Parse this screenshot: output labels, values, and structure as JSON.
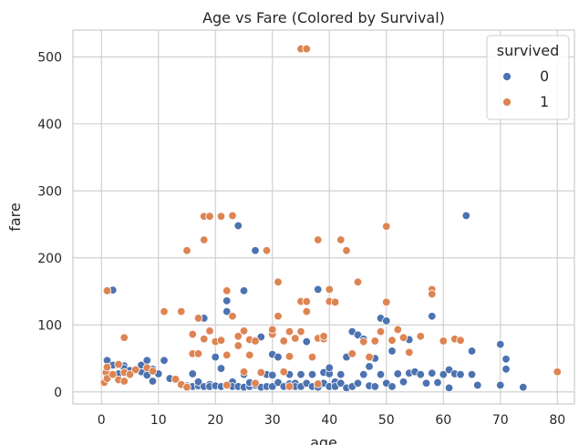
{
  "chart_data": {
    "type": "scatter",
    "title": "Age vs Fare (Colored by Survival)",
    "xlabel": "age",
    "ylabel": "fare",
    "xlim": [
      -5,
      83
    ],
    "ylim": [
      -18,
      540
    ],
    "xticks": [
      0,
      10,
      20,
      30,
      40,
      50,
      60,
      70,
      80
    ],
    "yticks": [
      0,
      100,
      200,
      300,
      400,
      500
    ],
    "grid": true,
    "legend": {
      "title": "survived",
      "placement": "top-right"
    },
    "series": [
      {
        "name": "0",
        "color": "#4c72b0",
        "points": [
          [
            2,
            152
          ],
          [
            1,
            47
          ],
          [
            2,
            40
          ],
          [
            3,
            27
          ],
          [
            4,
            39
          ],
          [
            4,
            35
          ],
          [
            5,
            32
          ],
          [
            7,
            30
          ],
          [
            7,
            40
          ],
          [
            8,
            25
          ],
          [
            8,
            47
          ],
          [
            9,
            34
          ],
          [
            9,
            16
          ],
          [
            10,
            27
          ],
          [
            11,
            47
          ],
          [
            12,
            20
          ],
          [
            14,
            10
          ],
          [
            15,
            9
          ],
          [
            16,
            8
          ],
          [
            16,
            27
          ],
          [
            17,
            9
          ],
          [
            17,
            15
          ],
          [
            18,
            110
          ],
          [
            18,
            8
          ],
          [
            19,
            11
          ],
          [
            19,
            263
          ],
          [
            19,
            8
          ],
          [
            20,
            9
          ],
          [
            20,
            52
          ],
          [
            21,
            8
          ],
          [
            21,
            35
          ],
          [
            22,
            9
          ],
          [
            22,
            120
          ],
          [
            22,
            136
          ],
          [
            23,
            15
          ],
          [
            23,
            8
          ],
          [
            24,
            248
          ],
          [
            24,
            8
          ],
          [
            25,
            151
          ],
          [
            25,
            26
          ],
          [
            25,
            7
          ],
          [
            26,
            8
          ],
          [
            26,
            14
          ],
          [
            27,
            211
          ],
          [
            27,
            10
          ],
          [
            28,
            82
          ],
          [
            28,
            7
          ],
          [
            29,
            26
          ],
          [
            29,
            8
          ],
          [
            30,
            8
          ],
          [
            30,
            56
          ],
          [
            30,
            25
          ],
          [
            31,
            14
          ],
          [
            31,
            52
          ],
          [
            32,
            8
          ],
          [
            32,
            77
          ],
          [
            33,
            12
          ],
          [
            33,
            26
          ],
          [
            34,
            13
          ],
          [
            34,
            8
          ],
          [
            35,
            8
          ],
          [
            35,
            26
          ],
          [
            36,
            13
          ],
          [
            36,
            75
          ],
          [
            37,
            8
          ],
          [
            37,
            26
          ],
          [
            38,
            153
          ],
          [
            38,
            7
          ],
          [
            39,
            29
          ],
          [
            39,
            13
          ],
          [
            40,
            8
          ],
          [
            40,
            27
          ],
          [
            40,
            36
          ],
          [
            41,
            15
          ],
          [
            41,
            8
          ],
          [
            42,
            26
          ],
          [
            42,
            13
          ],
          [
            43,
            52
          ],
          [
            43,
            6
          ],
          [
            44,
            90
          ],
          [
            44,
            8
          ],
          [
            45,
            85
          ],
          [
            45,
            13
          ],
          [
            46,
            79
          ],
          [
            46,
            26
          ],
          [
            47,
            38
          ],
          [
            47,
            9
          ],
          [
            48,
            8
          ],
          [
            48,
            50
          ],
          [
            49,
            26
          ],
          [
            49,
            110
          ],
          [
            50,
            106
          ],
          [
            50,
            13
          ],
          [
            51,
            61
          ],
          [
            51,
            8
          ],
          [
            52,
            27
          ],
          [
            53,
            15
          ],
          [
            54,
            28
          ],
          [
            54,
            78
          ],
          [
            55,
            30
          ],
          [
            56,
            26
          ],
          [
            57,
            13
          ],
          [
            58,
            113
          ],
          [
            58,
            28
          ],
          [
            59,
            14
          ],
          [
            60,
            26
          ],
          [
            61,
            33
          ],
          [
            61,
            6
          ],
          [
            62,
            27
          ],
          [
            63,
            26
          ],
          [
            64,
            263
          ],
          [
            65,
            61
          ],
          [
            65,
            26
          ],
          [
            66,
            10
          ],
          [
            70,
            71
          ],
          [
            70,
            10
          ],
          [
            71,
            49
          ],
          [
            71,
            34
          ],
          [
            74,
            7
          ]
        ]
      },
      {
        "name": "1",
        "color": "#dd8452",
        "points": [
          [
            1,
            151
          ],
          [
            0.5,
            14
          ],
          [
            0.8,
            29
          ],
          [
            1,
            20
          ],
          [
            1,
            37
          ],
          [
            2,
            26
          ],
          [
            3,
            18
          ],
          [
            3,
            41
          ],
          [
            4,
            81
          ],
          [
            4,
            16
          ],
          [
            4,
            29
          ],
          [
            5,
            26
          ],
          [
            6,
            33
          ],
          [
            8,
            36
          ],
          [
            9,
            31
          ],
          [
            11,
            120
          ],
          [
            13,
            19
          ],
          [
            14,
            120
          ],
          [
            14,
            11
          ],
          [
            15,
            211
          ],
          [
            15,
            7
          ],
          [
            16,
            86
          ],
          [
            16,
            57
          ],
          [
            17,
            110
          ],
          [
            17,
            57
          ],
          [
            18,
            262
          ],
          [
            18,
            227
          ],
          [
            18,
            79
          ],
          [
            19,
            91
          ],
          [
            19,
            262
          ],
          [
            20,
            75
          ],
          [
            21,
            262
          ],
          [
            21,
            77
          ],
          [
            22,
            151
          ],
          [
            22,
            55
          ],
          [
            23,
            262
          ],
          [
            23,
            113
          ],
          [
            23,
            263
          ],
          [
            24,
            83
          ],
          [
            24,
            69
          ],
          [
            25,
            91
          ],
          [
            25,
            30
          ],
          [
            26,
            78
          ],
          [
            26,
            55
          ],
          [
            27,
            76
          ],
          [
            28,
            29
          ],
          [
            29,
            211
          ],
          [
            30,
            86
          ],
          [
            30,
            93
          ],
          [
            31,
            164
          ],
          [
            31,
            113
          ],
          [
            32,
            76
          ],
          [
            32,
            30
          ],
          [
            33,
            90
          ],
          [
            33,
            53
          ],
          [
            34,
            80
          ],
          [
            35,
            512
          ],
          [
            35,
            135
          ],
          [
            35,
            90
          ],
          [
            36,
            512
          ],
          [
            36,
            135
          ],
          [
            36,
            120
          ],
          [
            37,
            52
          ],
          [
            38,
            227
          ],
          [
            38,
            80
          ],
          [
            39,
            79
          ],
          [
            39,
            83
          ],
          [
            40,
            153
          ],
          [
            40,
            135
          ],
          [
            41,
            134
          ],
          [
            42,
            227
          ],
          [
            43,
            211
          ],
          [
            44,
            57
          ],
          [
            45,
            164
          ],
          [
            46,
            75
          ],
          [
            47,
            52
          ],
          [
            48,
            76
          ],
          [
            49,
            90
          ],
          [
            50,
            247
          ],
          [
            50,
            134
          ],
          [
            51,
            77
          ],
          [
            52,
            93
          ],
          [
            53,
            81
          ],
          [
            54,
            59
          ],
          [
            56,
            83
          ],
          [
            58,
            153
          ],
          [
            58,
            146
          ],
          [
            60,
            76
          ],
          [
            62,
            79
          ],
          [
            63,
            77
          ],
          [
            80,
            30
          ],
          [
            22,
            10
          ],
          [
            27,
            13
          ],
          [
            33,
            8
          ],
          [
            38,
            12
          ]
        ]
      }
    ]
  }
}
